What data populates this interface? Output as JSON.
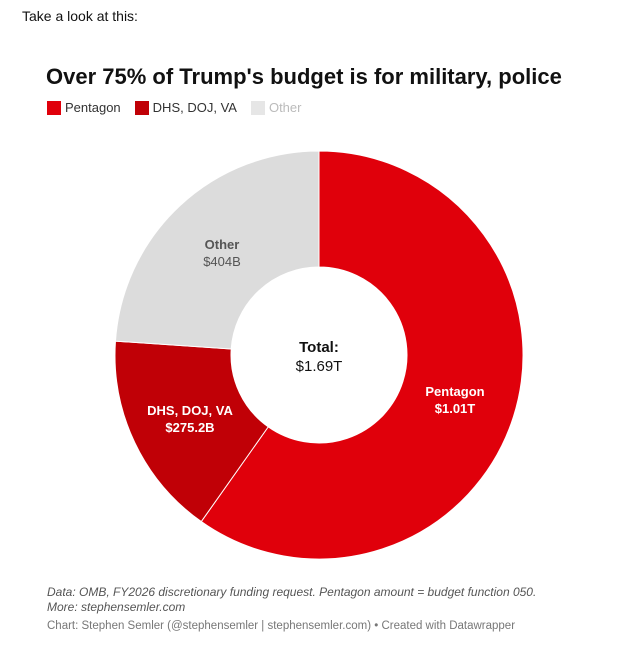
{
  "intro_text": "Take a look at this:",
  "chart_data": {
    "type": "pie",
    "title": "Over 75% of Trump's budget is for military, police",
    "total_label": "Total:",
    "total_value": "$1.69T",
    "slices": [
      {
        "name": "Pentagon",
        "value": 1010,
        "value_label": "$1.01T",
        "color": "#e0000b"
      },
      {
        "name": "DHS, DOJ, VA",
        "value": 275.2,
        "value_label": "$275.2B",
        "color": "#c00006"
      },
      {
        "name": "Other",
        "value": 404,
        "value_label": "$404B",
        "color": "#dcdcdc"
      }
    ],
    "unit": "billions USD"
  },
  "footer": {
    "source": "Data: OMB, FY2026 discretionary funding request. Pentagon amount = budget function 050.",
    "more": "More: stephensemler.com",
    "credit": "Chart: Stephen Semler (@stephensemler | stephensemler.com) • Created with Datawrapper"
  }
}
